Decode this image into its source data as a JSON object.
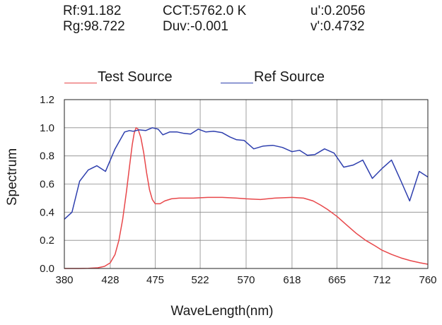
{
  "metrics": {
    "rf": "Rf:91.182",
    "rg": "Rg:98.722",
    "cct": "CCT:5762.0 K",
    "duv": "Duv:-0.001",
    "u_prime": "u':0.2056",
    "v_prime": "v':0.4732"
  },
  "colors": {
    "test": "#e8474a",
    "ref": "#2e3fae",
    "grid": "#8a8a8a"
  },
  "chart_data": {
    "type": "line",
    "title": "",
    "xlabel": "WaveLength(nm)",
    "ylabel": "Spectrum",
    "xlim": [
      380,
      760
    ],
    "ylim": [
      0,
      1.2
    ],
    "x_ticks": [
      380,
      428,
      475,
      522,
      570,
      618,
      665,
      712,
      760
    ],
    "x_tick_labels": [
      "380",
      "428",
      "475",
      "522",
      "570",
      "618",
      "665",
      "712",
      "760"
    ],
    "y_ticks": [
      0,
      0.2,
      0.4,
      0.6,
      0.8,
      1.0,
      1.2
    ],
    "y_tick_labels": [
      "0.0",
      "0.2",
      "0.4",
      "0.6",
      "0.8",
      "1.0",
      "1.2"
    ],
    "grid": true,
    "legend": "top",
    "series": [
      {
        "name": "Test Source",
        "color": "#e8474a",
        "points": [
          [
            380,
            0.0
          ],
          [
            395,
            0.0
          ],
          [
            405,
            0.001
          ],
          [
            415,
            0.005
          ],
          [
            422,
            0.015
          ],
          [
            428,
            0.04
          ],
          [
            433,
            0.1
          ],
          [
            437,
            0.2
          ],
          [
            441,
            0.35
          ],
          [
            445,
            0.55
          ],
          [
            448,
            0.72
          ],
          [
            451,
            0.88
          ],
          [
            453,
            0.96
          ],
          [
            455,
            1.0
          ],
          [
            457,
            0.99
          ],
          [
            460,
            0.93
          ],
          [
            463,
            0.82
          ],
          [
            466,
            0.68
          ],
          [
            469,
            0.56
          ],
          [
            472,
            0.49
          ],
          [
            475,
            0.46
          ],
          [
            480,
            0.46
          ],
          [
            485,
            0.48
          ],
          [
            492,
            0.495
          ],
          [
            500,
            0.5
          ],
          [
            515,
            0.5
          ],
          [
            530,
            0.505
          ],
          [
            545,
            0.505
          ],
          [
            560,
            0.5
          ],
          [
            570,
            0.495
          ],
          [
            585,
            0.49
          ],
          [
            600,
            0.5
          ],
          [
            618,
            0.505
          ],
          [
            630,
            0.5
          ],
          [
            640,
            0.48
          ],
          [
            648,
            0.45
          ],
          [
            655,
            0.42
          ],
          [
            665,
            0.37
          ],
          [
            675,
            0.31
          ],
          [
            685,
            0.25
          ],
          [
            695,
            0.2
          ],
          [
            705,
            0.16
          ],
          [
            712,
            0.13
          ],
          [
            722,
            0.1
          ],
          [
            732,
            0.075
          ],
          [
            742,
            0.055
          ],
          [
            752,
            0.04
          ],
          [
            760,
            0.03
          ]
        ]
      },
      {
        "name": "Ref Source",
        "color": "#2e3fae",
        "points": [
          [
            380,
            0.35
          ],
          [
            388,
            0.4
          ],
          [
            396,
            0.62
          ],
          [
            405,
            0.7
          ],
          [
            414,
            0.73
          ],
          [
            423,
            0.69
          ],
          [
            433,
            0.85
          ],
          [
            443,
            0.97
          ],
          [
            448,
            0.98
          ],
          [
            452,
            0.975
          ],
          [
            458,
            0.985
          ],
          [
            465,
            0.98
          ],
          [
            472,
            1.0
          ],
          [
            478,
            0.99
          ],
          [
            483,
            0.95
          ],
          [
            490,
            0.97
          ],
          [
            498,
            0.97
          ],
          [
            505,
            0.96
          ],
          [
            512,
            0.955
          ],
          [
            520,
            0.99
          ],
          [
            528,
            0.97
          ],
          [
            536,
            0.975
          ],
          [
            545,
            0.965
          ],
          [
            553,
            0.935
          ],
          [
            560,
            0.915
          ],
          [
            568,
            0.91
          ],
          [
            578,
            0.85
          ],
          [
            588,
            0.87
          ],
          [
            598,
            0.875
          ],
          [
            608,
            0.86
          ],
          [
            618,
            0.83
          ],
          [
            626,
            0.84
          ],
          [
            634,
            0.805
          ],
          [
            642,
            0.81
          ],
          [
            652,
            0.85
          ],
          [
            662,
            0.82
          ],
          [
            672,
            0.72
          ],
          [
            682,
            0.735
          ],
          [
            692,
            0.77
          ],
          [
            702,
            0.64
          ],
          [
            712,
            0.71
          ],
          [
            722,
            0.77
          ],
          [
            732,
            0.62
          ],
          [
            741,
            0.48
          ],
          [
            751,
            0.69
          ],
          [
            760,
            0.65
          ]
        ]
      }
    ]
  }
}
